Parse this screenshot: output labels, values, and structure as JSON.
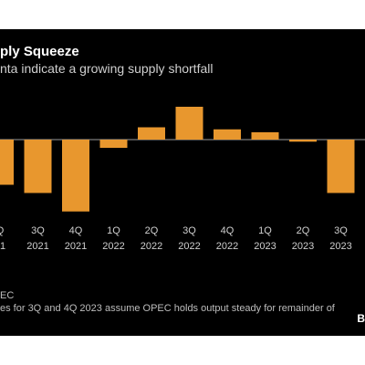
{
  "title": "ply Squeeze",
  "subtitle": "nta indicate a growing supply shortfall",
  "footnotes": [
    "EC",
    "es for 3Q and 4Q 2023 assume OPEC holds output steady for remainder of"
  ],
  "brand_label": "B",
  "colors": {
    "background": "#000000",
    "bar": "#e8972e",
    "zero_line": "#9a9a9a",
    "text": "#ffffff",
    "muted_text": "#cfcfcf"
  },
  "chart_data": {
    "type": "bar",
    "title": "",
    "xlabel": "",
    "ylabel": "",
    "categories": [
      [
        "Q",
        "21"
      ],
      [
        "3Q",
        "2021"
      ],
      [
        "4Q",
        "2021"
      ],
      [
        "1Q",
        "2022"
      ],
      [
        "2Q",
        "2022"
      ],
      [
        "3Q",
        "2022"
      ],
      [
        "4Q",
        "2022"
      ],
      [
        "1Q",
        "2023"
      ],
      [
        "2Q",
        "2023"
      ],
      [
        "3Q",
        "2023"
      ]
    ],
    "values": [
      -1.1,
      -1.3,
      -1.75,
      -0.2,
      0.3,
      0.8,
      0.25,
      0.18,
      -0.05,
      -1.3
    ],
    "ylim": [
      -2.3,
      1.1
    ],
    "grid": false,
    "legend": "none"
  }
}
